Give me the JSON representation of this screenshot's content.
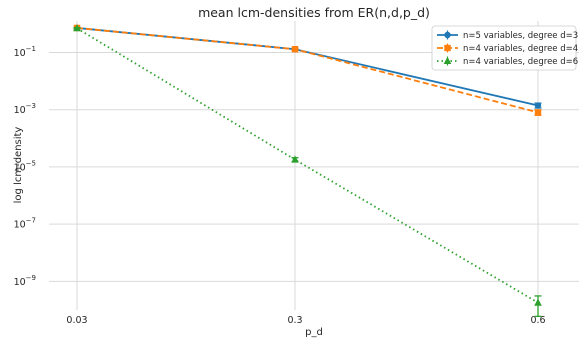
{
  "chart_data": {
    "type": "line",
    "title": "mean lcm-densities from ER(n,d,p_d)",
    "xlabel": "p_d",
    "ylabel": "log lcm-density",
    "x": [
      0.03,
      0.3,
      0.6
    ],
    "x_tick_labels": [
      "0.03",
      "0.3",
      "0.6"
    ],
    "y_scale": "log",
    "ylim": [
      1e-10,
      1.0
    ],
    "y_ticks": [
      {
        "value": 0.1,
        "base": "10",
        "exp": "−1"
      },
      {
        "value": 0.001,
        "base": "10",
        "exp": "−3"
      },
      {
        "value": 1e-05,
        "base": "10",
        "exp": "−5"
      },
      {
        "value": 1e-07,
        "base": "10",
        "exp": "−7"
      },
      {
        "value": 1e-09,
        "base": "10",
        "exp": "−9"
      }
    ],
    "grid": true,
    "legend_position": "top-right",
    "series": [
      {
        "name": "n=5 variables, degree d=3",
        "color": "#1f77b4",
        "line_style": "solid",
        "marker": "circle",
        "values": [
          0.72,
          0.13,
          0.0014
        ],
        "error_low": [
          0.69,
          0.12,
          0.00115
        ],
        "error_high": [
          0.75,
          0.14,
          0.0017
        ]
      },
      {
        "name": "n=4 variables, degree d=4",
        "color": "#ff7f0e",
        "line_style": "dashed",
        "marker": "square",
        "values": [
          0.72,
          0.13,
          0.0008
        ],
        "error_low": [
          0.69,
          0.12,
          0.00064
        ],
        "error_high": [
          0.75,
          0.14,
          0.00098
        ]
      },
      {
        "name": "n=4 variables, degree d=6",
        "color": "#2ca02c",
        "line_style": "dotted",
        "marker": "triangle",
        "values": [
          0.7,
          1.8e-05,
          1.8e-10
        ],
        "error_low": [
          0.66,
          1.5e-05,
          6e-11
        ],
        "error_high": [
          0.74,
          2.1e-05,
          3.1e-10
        ]
      }
    ]
  }
}
